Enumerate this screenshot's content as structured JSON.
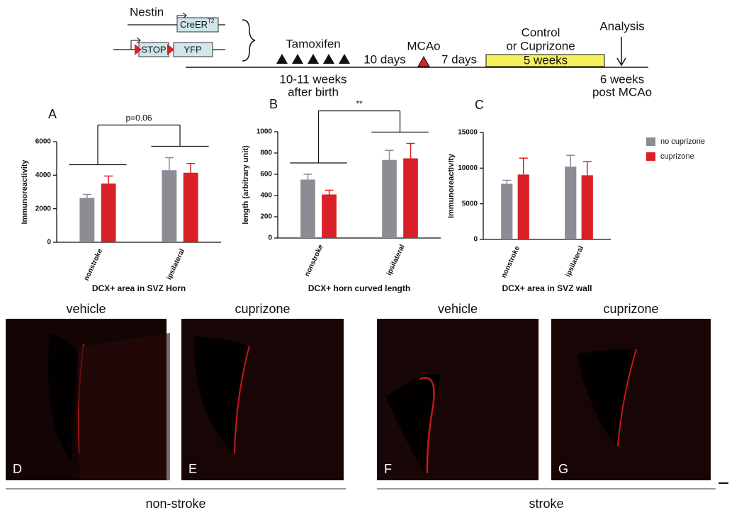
{
  "timeline": {
    "gene1": "Nestin",
    "construct": "CreER",
    "construct_sup": "T2",
    "stop": "STOP",
    "reporter": "YFP",
    "tamoxifen": "Tamoxifen",
    "age_line1": "10-11 weeks",
    "age_line2": "after birth",
    "gap1": "10 days",
    "mcao": "MCAo",
    "gap2": "7 days",
    "treat_line1": "Control",
    "treat_line2": "or Cuprizone",
    "treat_duration": "5 weeks",
    "analysis": "Analysis",
    "end_line1": "6 weeks",
    "end_line2": "post MCAo"
  },
  "chart_data": [
    {
      "type": "bar",
      "panel": "A",
      "title": "DCX+ area in SVZ Horn",
      "y_label": "Immunoreactivity",
      "annotation": "p=0.06",
      "categories": [
        "nonstroke",
        "ipsilateral"
      ],
      "series": [
        {
          "color": "#8c8c94",
          "values": [
            2650,
            4300
          ],
          "errors": [
            200,
            750
          ]
        },
        {
          "color": "#d92027",
          "values": [
            3500,
            4150
          ],
          "errors": [
            450,
            550
          ]
        }
      ],
      "ylim": [
        0,
        6000
      ],
      "yticks": [
        0,
        2000,
        4000,
        6000
      ]
    },
    {
      "type": "bar",
      "panel": "B",
      "title": "DCX+ horn curved length",
      "y_label": "length (arbitrary unit)",
      "annotation": "**",
      "categories": [
        "nonstroke",
        "ipsilateral"
      ],
      "series": [
        {
          "color": "#8c8c94",
          "values": [
            550,
            735
          ],
          "errors": [
            50,
            90
          ]
        },
        {
          "color": "#d92027",
          "values": [
            410,
            750
          ],
          "errors": [
            40,
            140
          ]
        }
      ],
      "ylim": [
        0,
        1000
      ],
      "yticks": [
        0,
        200,
        400,
        600,
        800,
        1000
      ]
    },
    {
      "type": "bar",
      "panel": "C",
      "title": "DCX+ area in SVZ wall",
      "y_label": "Immunoreactivity",
      "categories": [
        "nonstroke",
        "ipsilateral"
      ],
      "series": [
        {
          "name": "no cuprizone",
          "color": "#8c8c94",
          "values": [
            7800,
            10200
          ],
          "errors": [
            500,
            1600
          ]
        },
        {
          "name": "cuprizone",
          "color": "#d92027",
          "values": [
            9100,
            9000
          ],
          "errors": [
            2300,
            1900
          ]
        }
      ],
      "ylim": [
        0,
        15000
      ],
      "yticks": [
        0,
        5000,
        10000,
        15000
      ]
    }
  ],
  "images": {
    "panels": [
      {
        "title": "vehicle",
        "letter": "D"
      },
      {
        "title": "cuprizone",
        "letter": "E"
      },
      {
        "title": "vehicle",
        "letter": "F"
      },
      {
        "title": "cuprizone",
        "letter": "G"
      }
    ],
    "groups": [
      "non-stroke",
      "stroke"
    ]
  }
}
